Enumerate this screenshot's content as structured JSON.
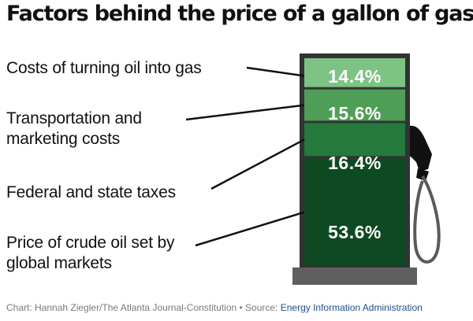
{
  "title": "Factors behind the price of a gallon of gas",
  "chart_data": {
    "type": "bar",
    "subtype": "stacked-single-column",
    "categories": [
      "Costs of turning oil into gas",
      "Transportation and\nmarketing costs",
      "Federal and state taxes",
      "Price of crude oil set by\nglobal markets"
    ],
    "values": [
      14.4,
      15.6,
      16.4,
      53.6
    ],
    "value_labels": [
      "14.4%",
      "15.6%",
      "16.4%",
      "53.6%"
    ],
    "unit": "%",
    "colors": [
      "#7dc383",
      "#4e9e58",
      "#237a3c",
      "#0d4a22"
    ]
  },
  "credit": {
    "text": "Chart: Hannah Ziegler/The Atlanta Journal-Constitution • Source: ",
    "source": "Energy Information Administration"
  }
}
